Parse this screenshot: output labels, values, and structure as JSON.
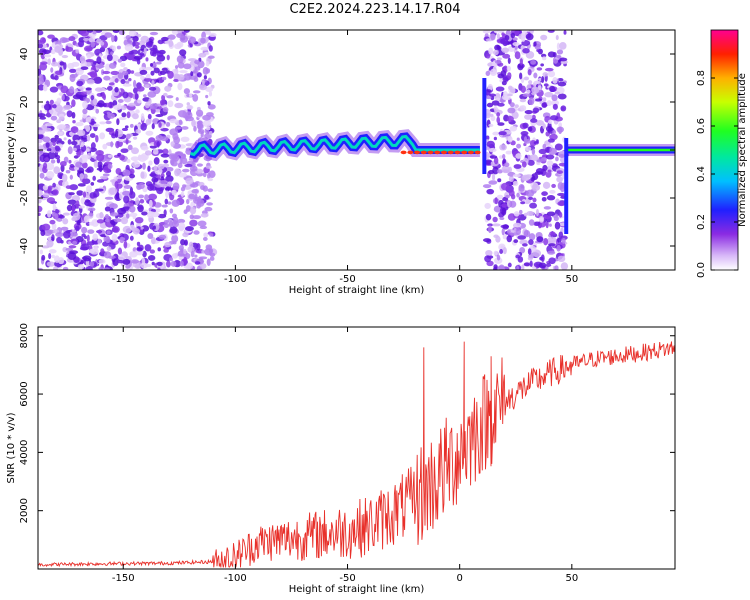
{
  "title": "C2E2.2024.223.14.17.R04",
  "chart_data": [
    {
      "type": "heatmap",
      "title": "C2E2.2024.223.14.17.R04",
      "xlabel": "Height of straight line (km)",
      "ylabel": "Frequency (Hz)",
      "xlim": [
        -188,
        96
      ],
      "ylim": [
        -50,
        50
      ],
      "xticks": [
        -150,
        -100,
        -50,
        0,
        50
      ],
      "yticks": [
        -40,
        -20,
        0,
        20,
        40
      ],
      "colorbar": {
        "label": "Normalized spectral amplitude",
        "range": [
          0.0,
          1.0
        ],
        "ticks": [
          "0.0",
          "0.2",
          "0.4",
          "0.6",
          "0.8"
        ]
      },
      "regions": [
        {
          "name": "broadband noise",
          "x_from": -188,
          "x_to": -110,
          "freq_from": -50,
          "freq_to": 50
        },
        {
          "name": "narrowband signal",
          "x_from": -120,
          "x_to": 10,
          "center_freq": 0
        },
        {
          "name": "broadband noise",
          "x_from": 12,
          "x_to": 47,
          "freq_from": -50,
          "freq_to": 50
        },
        {
          "name": "narrowband signal",
          "x_from": 48,
          "x_to": 96,
          "center_freq": 0
        }
      ]
    },
    {
      "type": "line",
      "xlabel": "Height of straight line (km)",
      "ylabel": "SNR (10 * v/v)",
      "xlim": [
        -188,
        96
      ],
      "ylim": [
        0,
        8300
      ],
      "xticks": [
        -150,
        -100,
        -50,
        0,
        50
      ],
      "yticks": [
        2000,
        4000,
        6000,
        8000
      ],
      "series": [
        {
          "name": "SNR",
          "color": "#e8302a",
          "x": [
            -188,
            -160,
            -130,
            -110,
            -100,
            -90,
            -80,
            -70,
            -60,
            -50,
            -40,
            -30,
            -20,
            -10,
            0,
            10,
            20,
            30,
            40,
            50,
            60,
            70,
            80,
            96
          ],
          "y": [
            150,
            180,
            200,
            250,
            400,
            900,
            1000,
            1100,
            1200,
            1300,
            1500,
            1900,
            2400,
            3100,
            4000,
            5000,
            5700,
            6300,
            6700,
            7000,
            7200,
            7300,
            7400,
            7600
          ]
        }
      ],
      "spikes": [
        {
          "x": -16,
          "y": 7600
        },
        {
          "x": 2,
          "y": 7800
        },
        {
          "x": 14,
          "y": 7300
        }
      ]
    }
  ]
}
